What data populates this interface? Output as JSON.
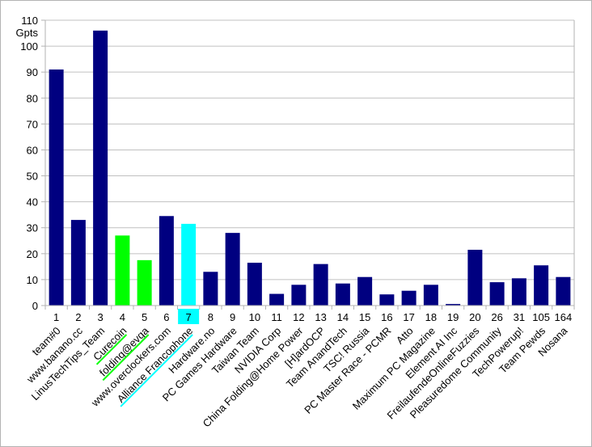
{
  "chart_data": {
    "type": "bar",
    "unit": "Gpts",
    "title": "",
    "xlabel": "",
    "ylabel": "Gpts",
    "ylim": [
      0,
      110
    ],
    "yticks": [
      0,
      10,
      20,
      30,
      40,
      50,
      60,
      70,
      80,
      90,
      100,
      110
    ],
    "grid": true,
    "legend": "none",
    "colors": {
      "navy": "#000080",
      "green": "#00ff00",
      "cyan": "#00ffff",
      "grid": "#c0c0c0",
      "axis": "#b3b3b3"
    },
    "highlight_rank": "7",
    "categories": [
      {
        "rank": "1",
        "name": "team#0",
        "value": 91,
        "color": "navy"
      },
      {
        "rank": "2",
        "name": "www.banano.cc",
        "value": 33,
        "color": "navy"
      },
      {
        "rank": "3",
        "name": "LinusTechTips_Team",
        "value": 106,
        "color": "navy"
      },
      {
        "rank": "4",
        "name": "Curecoin",
        "value": 27,
        "color": "green",
        "underline": "green"
      },
      {
        "rank": "5",
        "name": "folding@evga",
        "value": 17.5,
        "color": "green",
        "underline": "green"
      },
      {
        "rank": "6",
        "name": "www.overclockers.com",
        "value": 34.5,
        "color": "navy"
      },
      {
        "rank": "7",
        "name": "Alliance Francophone",
        "value": 31.5,
        "color": "cyan",
        "underline": "cyan"
      },
      {
        "rank": "8",
        "name": "Hardware.no",
        "value": 13,
        "color": "navy"
      },
      {
        "rank": "9",
        "name": "PC Games Hardware",
        "value": 28,
        "color": "navy"
      },
      {
        "rank": "10",
        "name": "Taiwan Team",
        "value": 16.5,
        "color": "navy"
      },
      {
        "rank": "11",
        "name": "NVIDIA Corp",
        "value": 4.5,
        "color": "navy"
      },
      {
        "rank": "12",
        "name": "China Folding@Home Power",
        "value": 8,
        "color": "navy"
      },
      {
        "rank": "13",
        "name": "[H]ardOCP",
        "value": 16,
        "color": "navy"
      },
      {
        "rank": "14",
        "name": "Team AnandTech",
        "value": 8.5,
        "color": "navy"
      },
      {
        "rank": "15",
        "name": "TSC! Russia",
        "value": 11,
        "color": "navy"
      },
      {
        "rank": "16",
        "name": "PC Master Race - PCMR",
        "value": 4.3,
        "color": "navy"
      },
      {
        "rank": "17",
        "name": "Atto",
        "value": 5.7,
        "color": "navy"
      },
      {
        "rank": "18",
        "name": "Maximum PC Magazine",
        "value": 8,
        "color": "navy"
      },
      {
        "rank": "19",
        "name": "Element AI Inc",
        "value": 0.6,
        "color": "navy"
      },
      {
        "rank": "20",
        "name": "FreilaufendeOnlineFuzzies",
        "value": 21.5,
        "color": "navy"
      },
      {
        "rank": "26",
        "name": "Pleasuredome Community",
        "value": 9,
        "color": "navy"
      },
      {
        "rank": "31",
        "name": "TechPowerup!",
        "value": 10.5,
        "color": "navy"
      },
      {
        "rank": "105",
        "name": "Team Pewds",
        "value": 15.5,
        "color": "navy"
      },
      {
        "rank": "164",
        "name": "Nosana",
        "value": 11,
        "color": "navy"
      }
    ]
  }
}
